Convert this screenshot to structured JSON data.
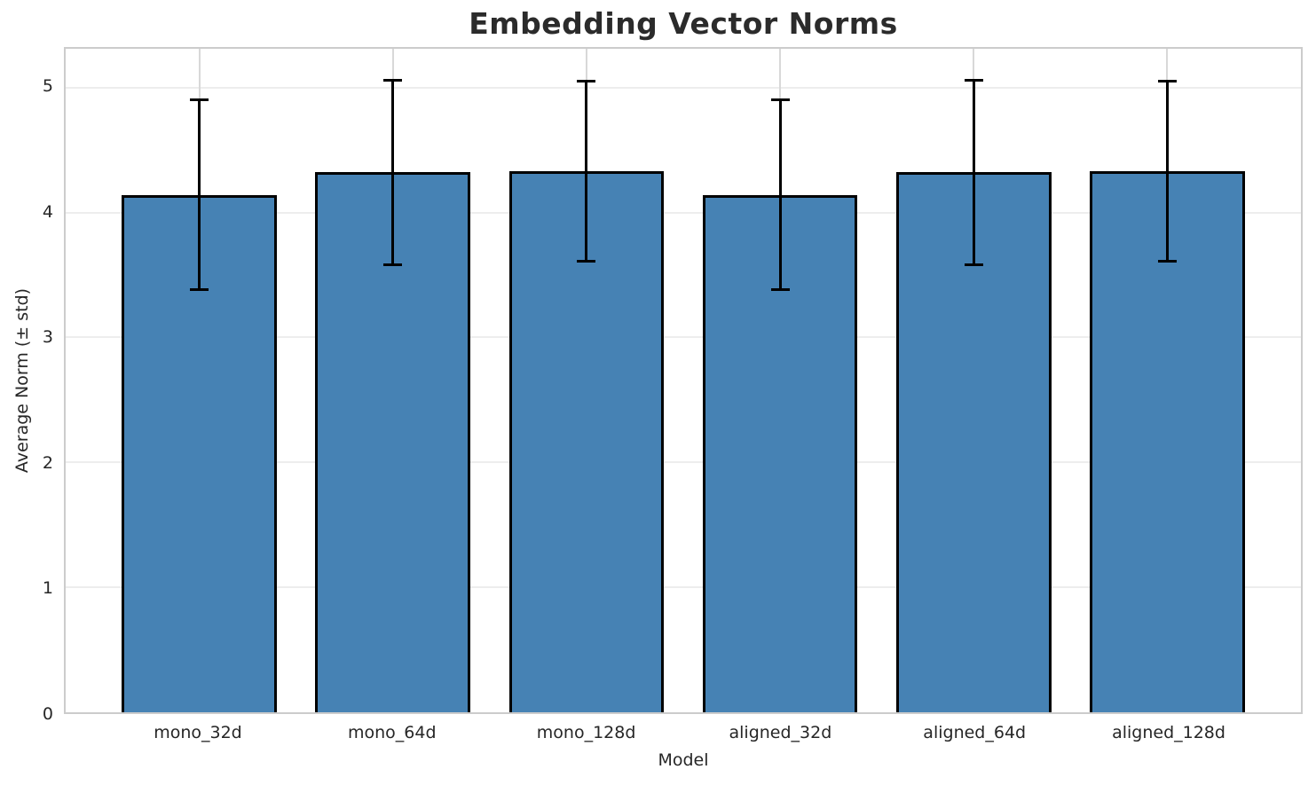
{
  "chart_data": {
    "type": "bar",
    "title": "Embedding Vector Norms",
    "xlabel": "Model",
    "ylabel": "Average Norm (± std)",
    "categories": [
      "mono_32d",
      "mono_64d",
      "mono_128d",
      "aligned_32d",
      "aligned_64d",
      "aligned_128d"
    ],
    "values": [
      4.14,
      4.32,
      4.33,
      4.14,
      4.32,
      4.33
    ],
    "errors": [
      0.76,
      0.74,
      0.72,
      0.76,
      0.74,
      0.72
    ],
    "yticks": [
      0,
      1,
      2,
      3,
      4,
      5
    ],
    "ylim": [
      0,
      5.31
    ],
    "grid": true,
    "legend": false,
    "bar_fill": "#4682b4",
    "bar_edge": "#000000",
    "error_color": "#000000"
  }
}
